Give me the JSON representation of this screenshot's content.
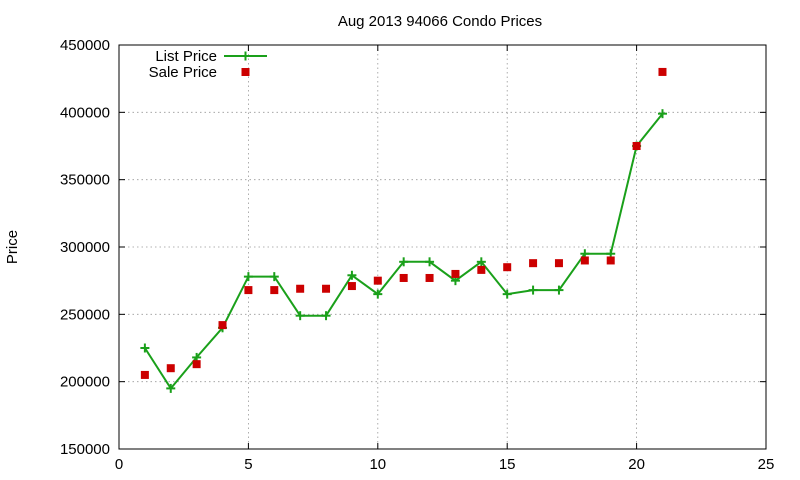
{
  "chart_data": {
    "type": "line",
    "title": "Aug 2013 94066 Condo Prices",
    "xlabel": "",
    "ylabel": "Price",
    "xlim": [
      0,
      25
    ],
    "ylim": [
      150000,
      450000
    ],
    "xticks": [
      "0",
      "5",
      "10",
      "15",
      "20",
      "25"
    ],
    "yticks": [
      "150000",
      "200000",
      "250000",
      "300000",
      "350000",
      "400000",
      "450000"
    ],
    "grid": true,
    "legend_position": "top-left",
    "series": [
      {
        "name": "List Price",
        "style": "line+cross",
        "color": "#1aa01a",
        "x": [
          1,
          2,
          3,
          4,
          5,
          6,
          7,
          8,
          9,
          10,
          11,
          12,
          13,
          14,
          15,
          16,
          17,
          18,
          19,
          20,
          21
        ],
        "y": [
          225000,
          195000,
          218000,
          240000,
          278000,
          278000,
          249000,
          249000,
          279000,
          265000,
          289000,
          289000,
          275000,
          289000,
          265000,
          268000,
          268000,
          295000,
          295000,
          375000,
          399000
        ]
      },
      {
        "name": "Sale Price",
        "style": "square-points",
        "color": "#cc0000",
        "x": [
          1,
          2,
          3,
          4,
          5,
          6,
          7,
          8,
          9,
          10,
          11,
          12,
          13,
          14,
          15,
          16,
          17,
          18,
          19,
          20,
          21
        ],
        "y": [
          205000,
          210000,
          213000,
          242000,
          268000,
          268000,
          269000,
          269000,
          271000,
          275000,
          277000,
          277000,
          280000,
          283000,
          285000,
          288000,
          288000,
          290000,
          290000,
          375000,
          430000
        ]
      }
    ]
  }
}
